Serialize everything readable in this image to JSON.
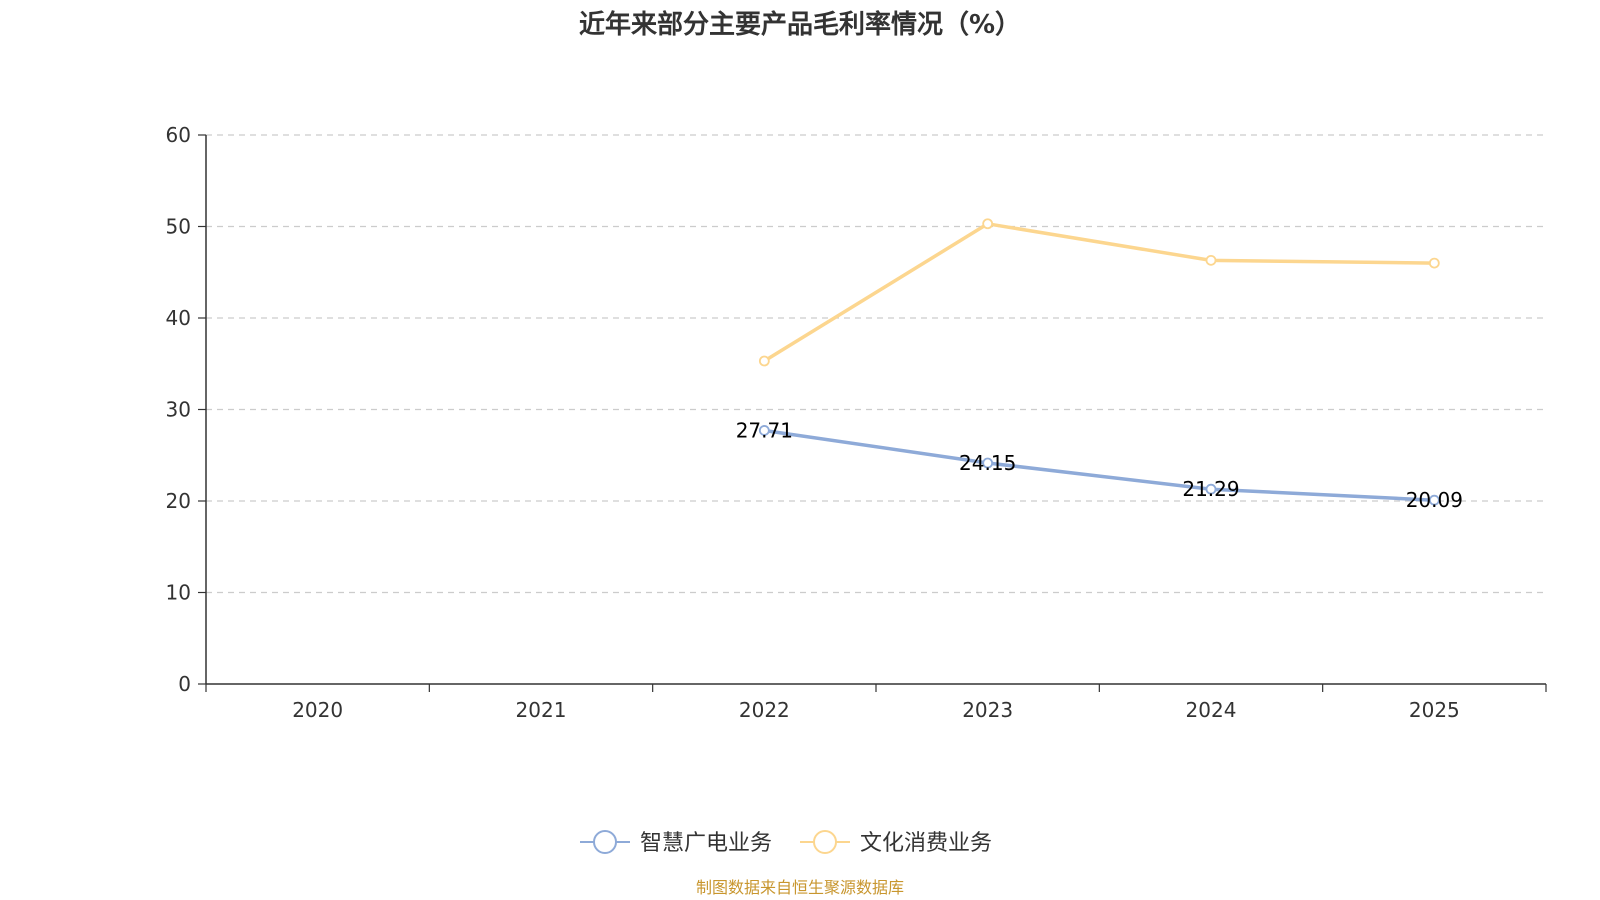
{
  "chart_data": {
    "type": "line",
    "title": "近年来部分主要产品毛利率情况（%）",
    "categories": [
      "2020",
      "2021",
      "2022",
      "2023",
      "2024",
      "2025"
    ],
    "ylim": [
      0,
      60
    ],
    "yticks": [
      0,
      10,
      20,
      30,
      40,
      50,
      60
    ],
    "grid": true,
    "legend_position": "bottom",
    "series": [
      {
        "name": "智慧广电业务",
        "color": "#8eaad8",
        "values": [
          null,
          null,
          27.71,
          24.15,
          21.29,
          20.09
        ],
        "show_labels": true
      },
      {
        "name": "文化消费业务",
        "color": "#fcd68f",
        "values": [
          null,
          null,
          35.3,
          50.3,
          46.3,
          46.0
        ],
        "show_labels": false
      }
    ],
    "source": "制图数据来自恒生聚源数据库"
  }
}
